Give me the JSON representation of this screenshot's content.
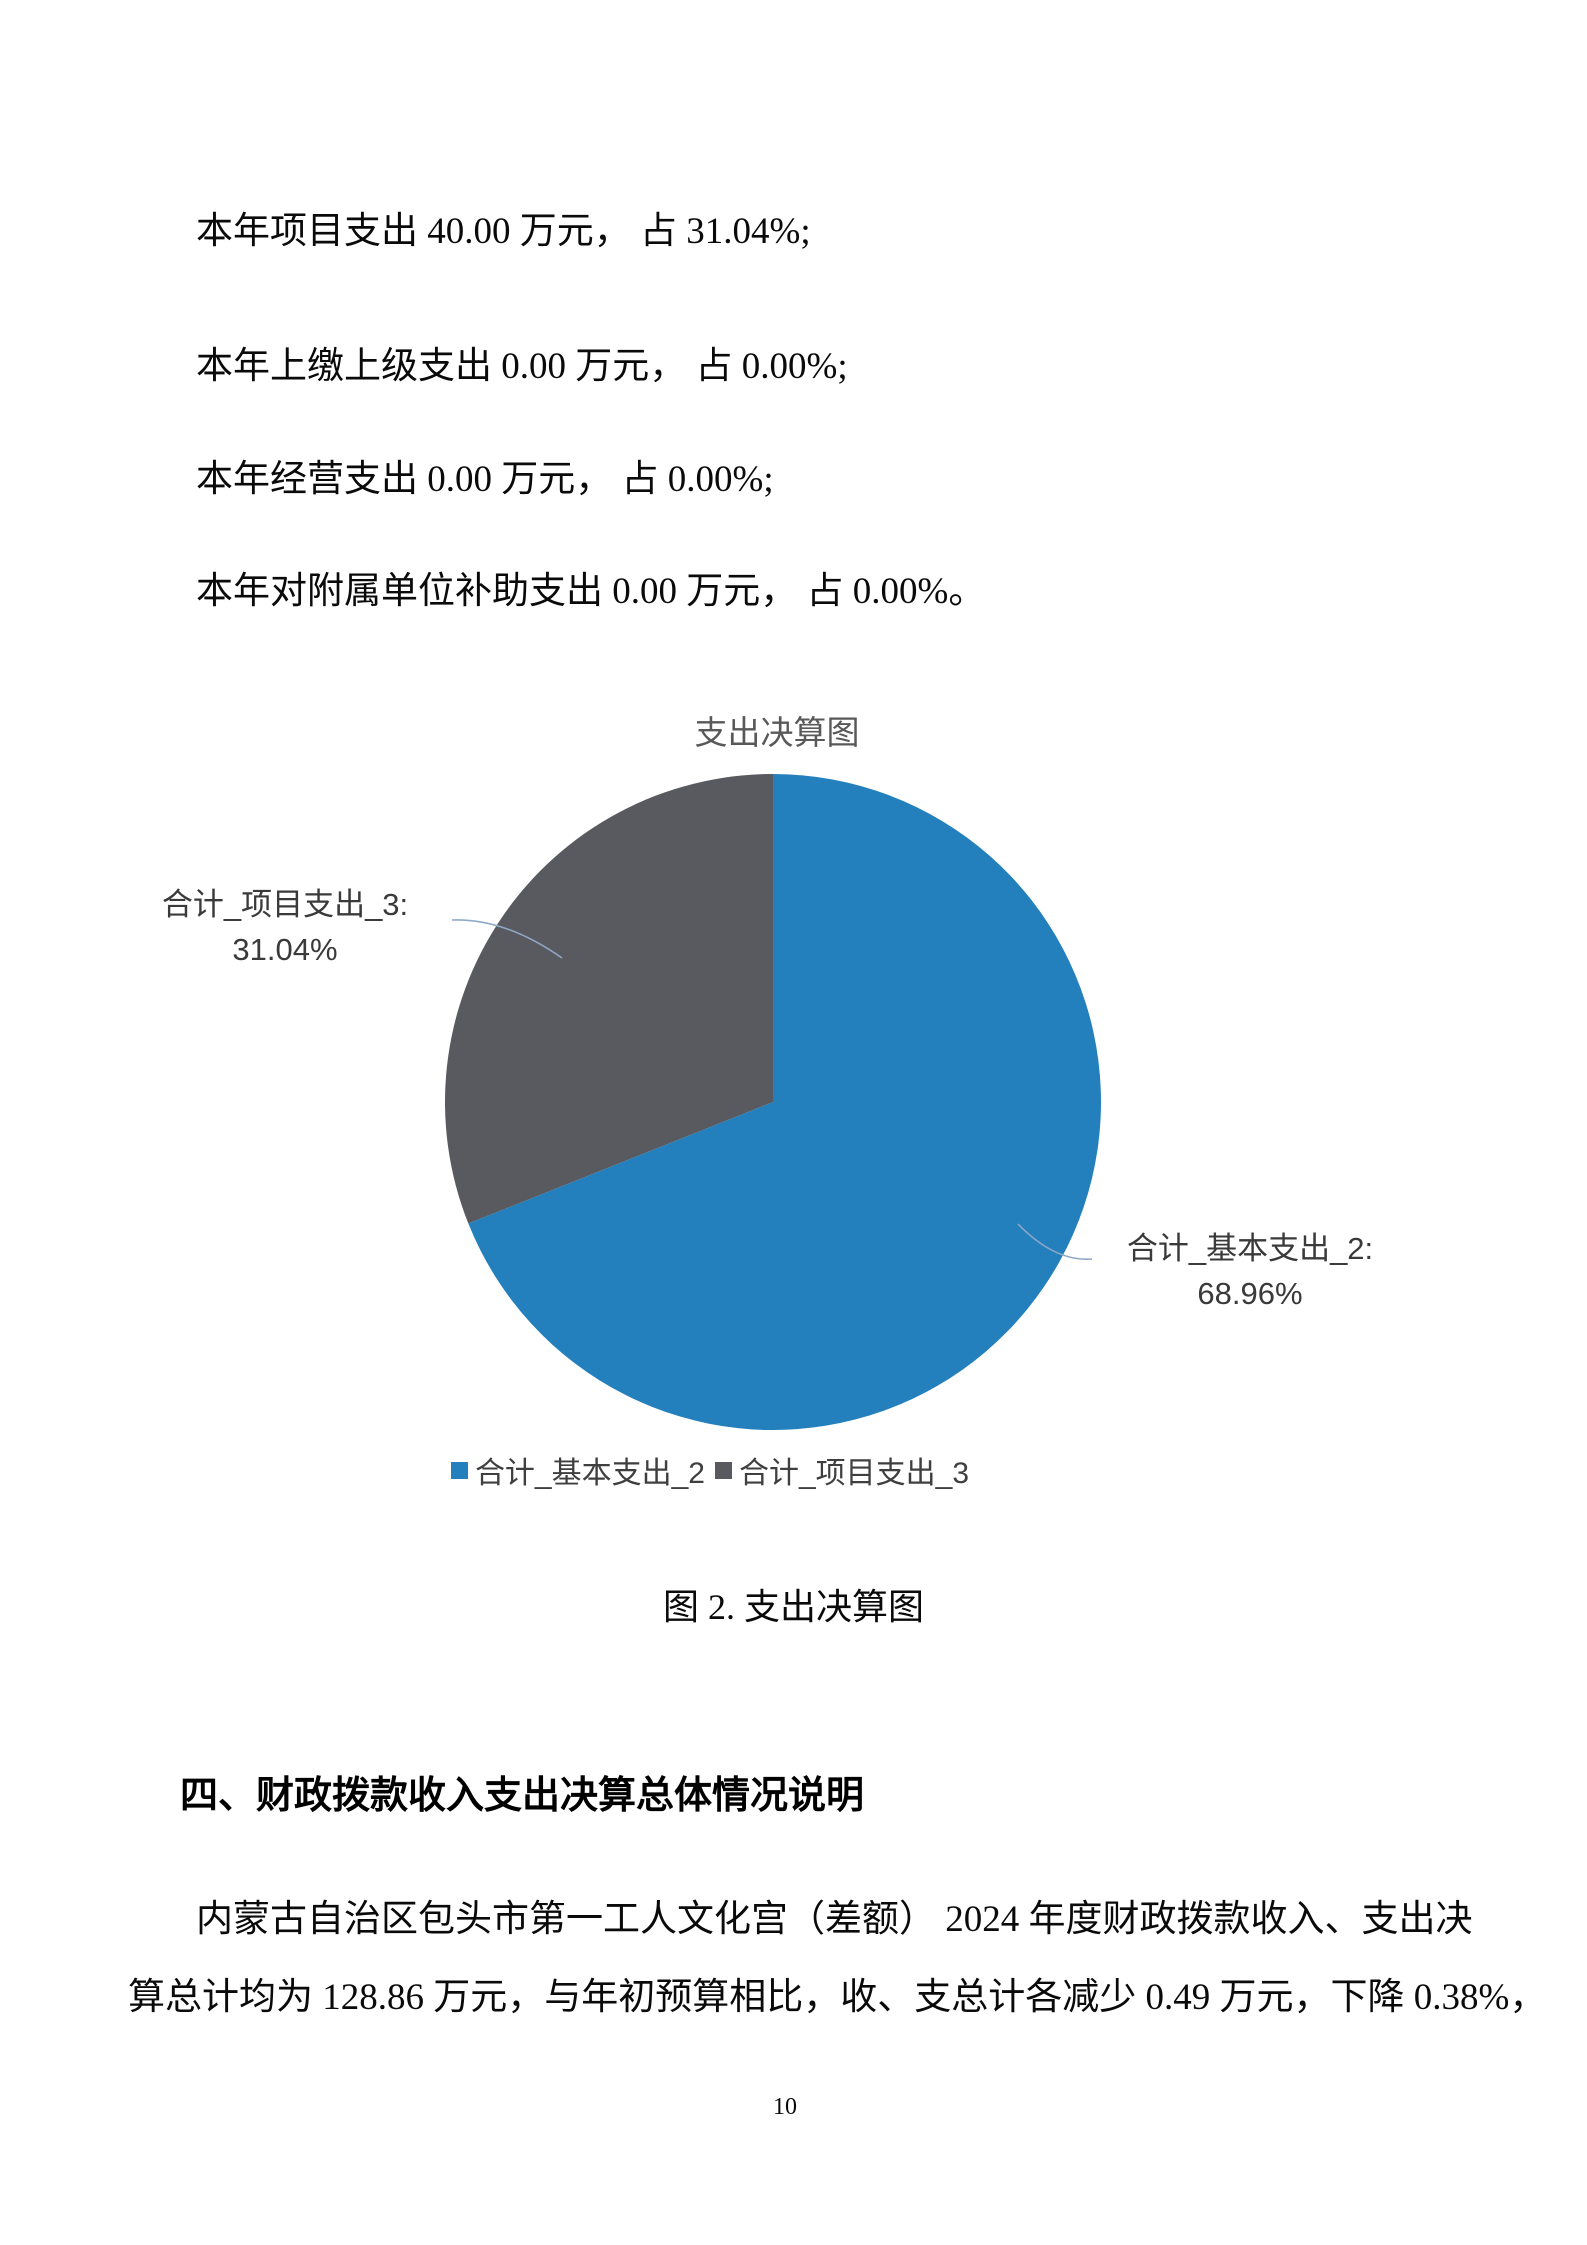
{
  "page": {
    "number": "10"
  },
  "body_lines": [
    "本年项目支出 40.00 万元， 占 31.04%;",
    "本年上缴上级支出 0.00 万元， 占 0.00%;",
    "本年经营支出 0.00 万元， 占 0.00%;",
    "本年对附属单位补助支出 0.00 万元， 占 0.00%。"
  ],
  "chart_data": {
    "type": "pie",
    "title": "支出决算图",
    "start_angle_deg": 0,
    "direction": "clockwise",
    "legend_position": "bottom",
    "slices": [
      {
        "name": "合计_基本支出_2",
        "value": 68.96,
        "color": "#2480BC",
        "callout_title": "合计_基本支出_2:",
        "callout_value": "68.96%"
      },
      {
        "name": "合计_项目支出_3",
        "value": 31.04,
        "color": "#595A5F",
        "callout_title": "合计_项目支出_3:",
        "callout_value": "31.04%"
      }
    ],
    "leader_line_color": "#8FA8C8"
  },
  "caption": "图 2. 支出决算图",
  "section": {
    "heading": "四、财政拨款收入支出决算总体情况说明",
    "paragraph_lines": [
      "内蒙古自治区包头市第一工人文化宫（差额） 2024 年度财政拨款收入、支出决",
      "算总计均为 128.86 万元，与年初预算相比，收、支总计各减少 0.49 万元，下降 0.38%，"
    ]
  }
}
